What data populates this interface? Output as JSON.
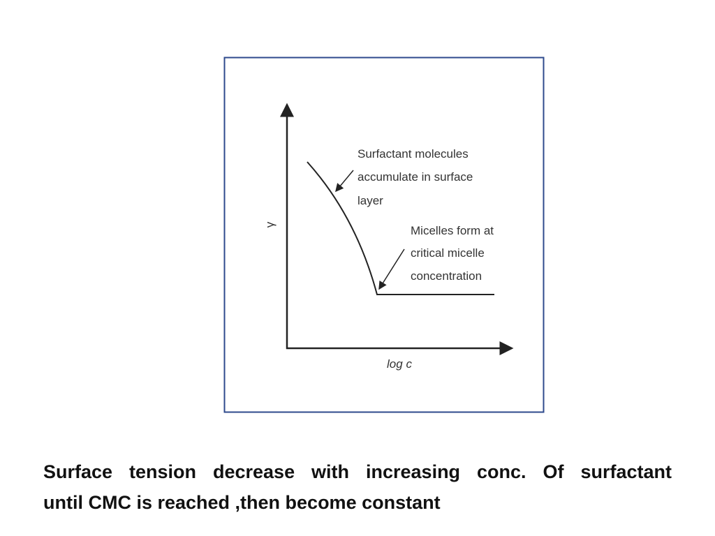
{
  "figure": {
    "y_axis_label": "γ",
    "x_axis_label": "log c",
    "annotations": [
      {
        "lines": [
          "Surfactant molecules",
          "accumulate in surface",
          "layer"
        ]
      },
      {
        "lines": [
          "Micelles form at",
          "critical micelle",
          "concentration"
        ]
      }
    ]
  },
  "caption": {
    "lines": [
      "Surface tension decrease with increasing conc. Of surfactant",
      "until CMC is reached ,then become constant"
    ]
  }
}
